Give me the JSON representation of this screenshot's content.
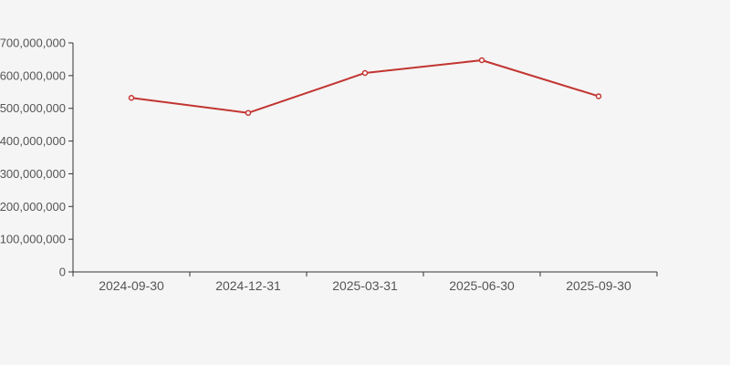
{
  "page": {
    "background": "#f5f5f5"
  },
  "chart_data": {
    "type": "line",
    "title": "",
    "xlabel": "",
    "ylabel": "",
    "categories": [
      "2024-09-30",
      "2024-12-31",
      "2025-03-31",
      "2025-06-30",
      "2025-09-30"
    ],
    "series": [
      {
        "name": "value",
        "values": [
          532000000,
          486000000,
          608000000,
          647000000,
          537000000
        ],
        "color": "#c23531"
      }
    ],
    "ylim": [
      0,
      700000000
    ],
    "y_tick_step": 100000000,
    "y_tick_labels": [
      "0",
      "100,000,000",
      "200,000,000",
      "300,000,000",
      "400,000,000",
      "500,000,000",
      "600,000,000",
      "700,000,000"
    ],
    "grid": false,
    "legend_visible": false,
    "marker": "open-circle",
    "colors": {
      "axis_line": "#333333",
      "tick_label": "#555555",
      "marker_fill": "#ffffff"
    }
  }
}
